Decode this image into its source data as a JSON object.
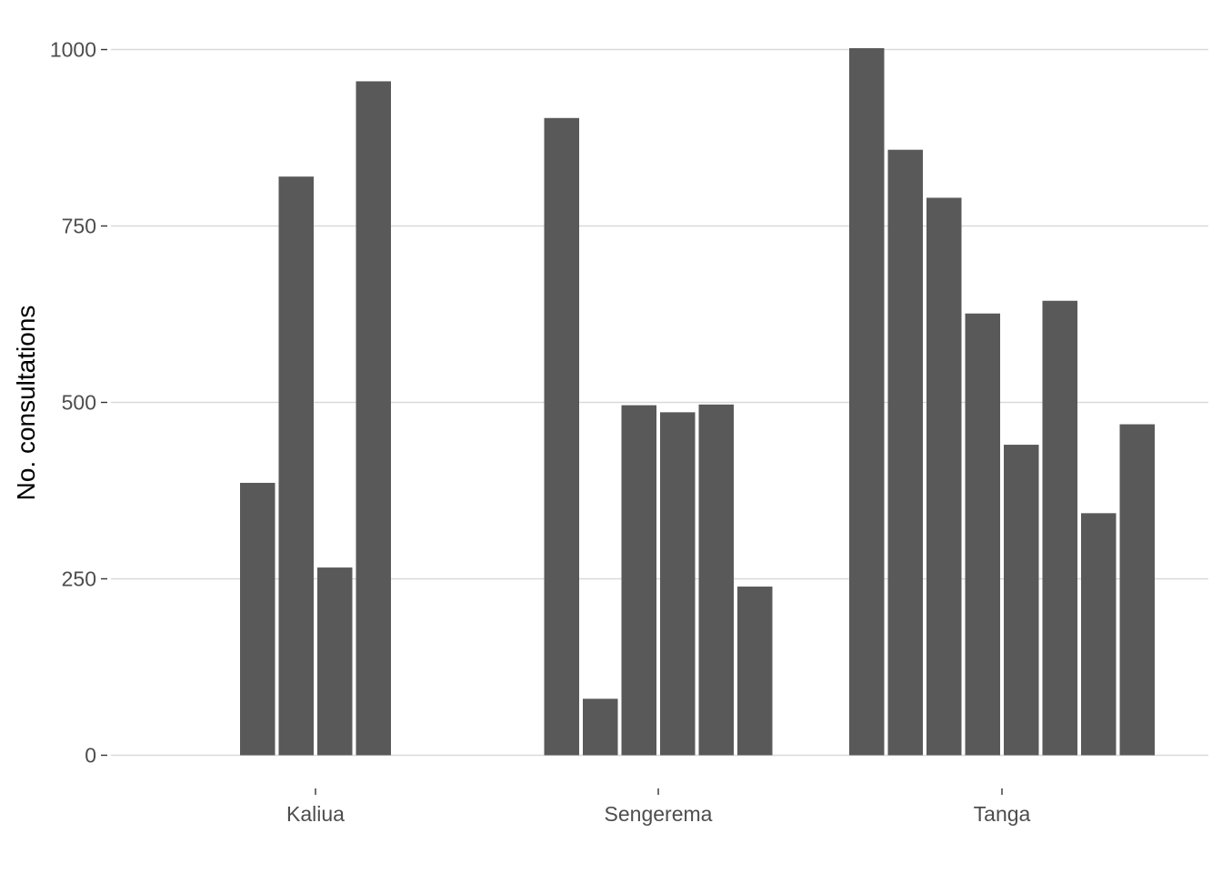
{
  "chart_data": {
    "type": "bar",
    "title": "",
    "xlabel": "",
    "ylabel": "No. consultations",
    "ylim": [
      0,
      1000
    ],
    "yticks": [
      0,
      250,
      500,
      750,
      1000
    ],
    "ytick_labels": [
      "0",
      "250",
      "500",
      "750",
      "1000"
    ],
    "grid": "horizontal",
    "legend": "none",
    "bar_color": "#595959",
    "grid_color": "#d9d9d9",
    "groups": [
      {
        "name": "Kaliua",
        "values": [
          386,
          820,
          266,
          955
        ]
      },
      {
        "name": "Sengerema",
        "values": [
          903,
          80,
          496,
          486,
          497,
          239
        ]
      },
      {
        "name": "Tanga",
        "values": [
          1002,
          858,
          790,
          626,
          440,
          644,
          343,
          469
        ]
      }
    ]
  }
}
